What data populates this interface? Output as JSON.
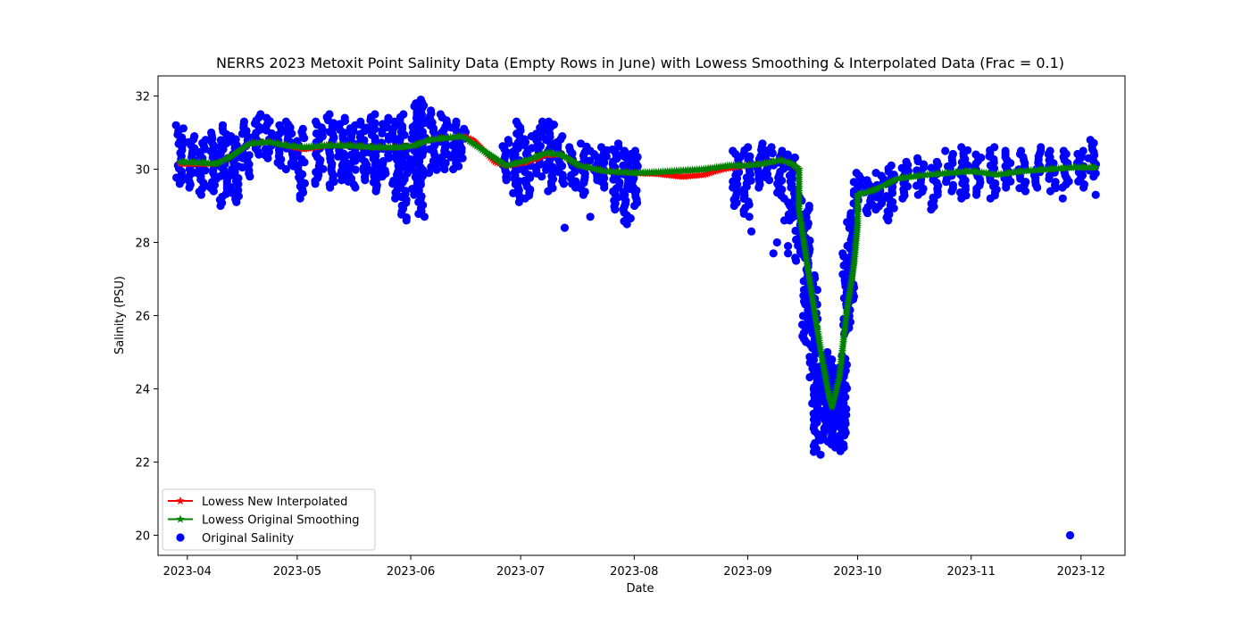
{
  "chart_data": {
    "type": "line",
    "title": "NERRS 2023 Metoxit Point Salinity Data (Empty Rows in June) with Lowess Smoothing & Interpolated Data (Frac = 0.1)",
    "xlabel": "Date",
    "ylabel": "Salinity (PSU)",
    "xlim": [
      "2023-03-24",
      "2023-12-13"
    ],
    "ylim": [
      19.45,
      32.55
    ],
    "x_ticks": [
      "2023-04-01",
      "2023-05-01",
      "2023-06-01",
      "2023-07-01",
      "2023-08-01",
      "2023-09-01",
      "2023-10-01",
      "2023-11-01",
      "2023-12-01"
    ],
    "x_tick_labels": [
      "2023-04",
      "2023-05",
      "2023-06",
      "2023-07",
      "2023-08",
      "2023-09",
      "2023-10",
      "2023-11",
      "2023-12"
    ],
    "y_ticks": [
      20,
      22,
      24,
      26,
      28,
      30,
      32
    ],
    "y_tick_labels": [
      "20",
      "22",
      "24",
      "26",
      "28",
      "30",
      "32"
    ],
    "grid": false,
    "legend_position": "lower-left",
    "series": [
      {
        "name": "Lowess New Interpolated",
        "style": "line-star",
        "color": "#ff0000",
        "points": [
          [
            "2023-03-30",
            30.15
          ],
          [
            "2023-04-05",
            30.15
          ],
          [
            "2023-04-09",
            30.15
          ],
          [
            "2023-04-13",
            30.35
          ],
          [
            "2023-04-18",
            30.7
          ],
          [
            "2023-04-23",
            30.75
          ],
          [
            "2023-04-28",
            30.65
          ],
          [
            "2023-05-03",
            30.55
          ],
          [
            "2023-05-06",
            30.6
          ],
          [
            "2023-05-09",
            30.65
          ],
          [
            "2023-05-15",
            30.65
          ],
          [
            "2023-05-22",
            30.6
          ],
          [
            "2023-05-29",
            30.6
          ],
          [
            "2023-06-02",
            30.65
          ],
          [
            "2023-06-06",
            30.8
          ],
          [
            "2023-06-10",
            30.85
          ],
          [
            "2023-06-15",
            30.9
          ],
          [
            "2023-06-18",
            30.8
          ],
          [
            "2023-06-21",
            30.5
          ],
          [
            "2023-06-24",
            30.2
          ],
          [
            "2023-06-27",
            30.1
          ],
          [
            "2023-07-03",
            30.2
          ],
          [
            "2023-07-08",
            30.4
          ],
          [
            "2023-07-12",
            30.4
          ],
          [
            "2023-07-17",
            30.1
          ],
          [
            "2023-07-24",
            29.95
          ],
          [
            "2023-08-01",
            29.9
          ],
          [
            "2023-08-07",
            29.88
          ],
          [
            "2023-08-14",
            29.8
          ],
          [
            "2023-08-20",
            29.85
          ],
          [
            "2023-08-25",
            30.0
          ],
          [
            "2023-08-31",
            30.1
          ],
          [
            "2023-09-05",
            30.15
          ],
          [
            "2023-09-10",
            30.25
          ],
          [
            "2023-09-13",
            30.15
          ],
          [
            "2023-09-15",
            30.0
          ]
        ]
      },
      {
        "name": "Lowess Original Smoothing",
        "style": "line-star",
        "color": "#008000",
        "points": [
          [
            "2023-03-30",
            30.2
          ],
          [
            "2023-04-05",
            30.18
          ],
          [
            "2023-04-09",
            30.15
          ],
          [
            "2023-04-13",
            30.35
          ],
          [
            "2023-04-18",
            30.7
          ],
          [
            "2023-04-23",
            30.75
          ],
          [
            "2023-04-28",
            30.65
          ],
          [
            "2023-05-03",
            30.6
          ],
          [
            "2023-05-09",
            30.65
          ],
          [
            "2023-05-15",
            30.65
          ],
          [
            "2023-05-22",
            30.6
          ],
          [
            "2023-05-29",
            30.6
          ],
          [
            "2023-06-02",
            30.65
          ],
          [
            "2023-06-06",
            30.8
          ],
          [
            "2023-06-10",
            30.85
          ],
          [
            "2023-06-15",
            30.9
          ],
          [
            "2023-06-27",
            30.1
          ],
          [
            "2023-07-03",
            30.25
          ],
          [
            "2023-07-08",
            30.45
          ],
          [
            "2023-07-12",
            30.4
          ],
          [
            "2023-07-17",
            30.1
          ],
          [
            "2023-07-24",
            29.95
          ],
          [
            "2023-08-01",
            29.9
          ],
          [
            "2023-08-07",
            29.92
          ],
          [
            "2023-08-20",
            30.0
          ],
          [
            "2023-08-27",
            30.1
          ],
          [
            "2023-08-31",
            30.1
          ],
          [
            "2023-09-05",
            30.15
          ],
          [
            "2023-09-10",
            30.25
          ],
          [
            "2023-09-13",
            30.15
          ],
          [
            "2023-09-15",
            30.0
          ],
          [
            "2023-09-15",
            28.9
          ],
          [
            "2023-09-18",
            26.9
          ],
          [
            "2023-09-21",
            25.0
          ],
          [
            "2023-09-23",
            23.9
          ],
          [
            "2023-09-24",
            23.5
          ],
          [
            "2023-09-26",
            24.3
          ],
          [
            "2023-09-28",
            26.1
          ],
          [
            "2023-09-30",
            27.4
          ],
          [
            "2023-10-01",
            28.5
          ],
          [
            "2023-10-01",
            29.3
          ],
          [
            "2023-10-06",
            29.45
          ],
          [
            "2023-10-12",
            29.75
          ],
          [
            "2023-10-20",
            29.85
          ],
          [
            "2023-11-01",
            29.95
          ],
          [
            "2023-11-08",
            29.85
          ],
          [
            "2023-11-15",
            29.95
          ],
          [
            "2023-11-22",
            30.0
          ],
          [
            "2023-11-29",
            30.05
          ],
          [
            "2023-12-05",
            30.05
          ]
        ]
      },
      {
        "name": "Original Salinity",
        "style": "scatter",
        "color": "#0000ff",
        "bands": [
          [
            "2023-03-30",
            29.6,
            31.2
          ],
          [
            "2023-04-02",
            29.5,
            30.9
          ],
          [
            "2023-04-05",
            29.3,
            30.8
          ],
          [
            "2023-04-08",
            29.4,
            31.0
          ],
          [
            "2023-04-11",
            29.0,
            31.2
          ],
          [
            "2023-04-14",
            29.1,
            30.9
          ],
          [
            "2023-04-17",
            29.8,
            31.3
          ],
          [
            "2023-04-20",
            30.4,
            31.5
          ],
          [
            "2023-04-23",
            30.3,
            31.4
          ],
          [
            "2023-04-26",
            30.1,
            31.2
          ],
          [
            "2023-04-29",
            30.0,
            31.3
          ],
          [
            "2023-05-02",
            29.2,
            31.1
          ],
          [
            "2023-05-07",
            29.6,
            31.3
          ],
          [
            "2023-05-10",
            29.5,
            31.5
          ],
          [
            "2023-05-13",
            29.7,
            31.4
          ],
          [
            "2023-05-16",
            29.5,
            31.2
          ],
          [
            "2023-05-19",
            29.7,
            31.3
          ],
          [
            "2023-05-22",
            29.4,
            31.5
          ],
          [
            "2023-05-25",
            29.8,
            31.4
          ],
          [
            "2023-05-28",
            29.2,
            31.3
          ],
          [
            "2023-05-30",
            28.6,
            31.5
          ],
          [
            "2023-06-02",
            29.3,
            31.8
          ],
          [
            "2023-06-04",
            28.7,
            31.9
          ],
          [
            "2023-06-07",
            29.9,
            31.6
          ],
          [
            "2023-06-10",
            30.0,
            31.5
          ],
          [
            "2023-06-13",
            30.0,
            31.3
          ],
          [
            "2023-06-15",
            30.3,
            31.1
          ],
          [
            "2023-06-27",
            29.7,
            30.8
          ],
          [
            "2023-06-30",
            29.1,
            31.3
          ],
          [
            "2023-07-03",
            29.2,
            30.9
          ],
          [
            "2023-07-06",
            29.8,
            31.3
          ],
          [
            "2023-07-09",
            29.4,
            31.3
          ],
          [
            "2023-07-12",
            29.6,
            30.9
          ],
          [
            "2023-07-15",
            29.5,
            30.6
          ],
          [
            "2023-07-18",
            29.3,
            30.7
          ],
          [
            "2023-07-21",
            29.7,
            30.5
          ],
          [
            "2023-07-24",
            29.5,
            30.6
          ],
          [
            "2023-07-27",
            28.9,
            30.7
          ],
          [
            "2023-07-30",
            28.5,
            30.5
          ],
          [
            "2023-08-01",
            29.0,
            30.5
          ],
          [
            "2023-08-29",
            29.0,
            30.5
          ],
          [
            "2023-09-01",
            28.7,
            30.6
          ],
          [
            "2023-09-04",
            29.5,
            30.7
          ],
          [
            "2023-09-07",
            29.7,
            30.6
          ],
          [
            "2023-09-10",
            29.2,
            30.5
          ],
          [
            "2023-09-13",
            28.6,
            30.4
          ],
          [
            "2023-09-15",
            27.5,
            29.3
          ],
          [
            "2023-09-17",
            25.2,
            29.0
          ],
          [
            "2023-09-19",
            23.6,
            27.1
          ],
          [
            "2023-09-20",
            22.2,
            24.6
          ],
          [
            "2023-09-22",
            22.6,
            25.0
          ],
          [
            "2023-09-24",
            22.4,
            24.8
          ],
          [
            "2023-09-26",
            22.3,
            24.5
          ],
          [
            "2023-09-27",
            22.4,
            24.9
          ],
          [
            "2023-09-28",
            25.5,
            27.7
          ],
          [
            "2023-09-29",
            26.2,
            28.8
          ],
          [
            "2023-10-01",
            28.9,
            29.9
          ],
          [
            "2023-10-04",
            28.8,
            29.7
          ],
          [
            "2023-10-07",
            28.9,
            29.9
          ],
          [
            "2023-10-10",
            28.6,
            30.1
          ],
          [
            "2023-10-14",
            29.2,
            30.2
          ],
          [
            "2023-10-18",
            29.3,
            30.3
          ],
          [
            "2023-10-22",
            28.9,
            30.2
          ],
          [
            "2023-10-26",
            29.4,
            30.5
          ],
          [
            "2023-10-30",
            29.2,
            30.6
          ],
          [
            "2023-11-03",
            29.3,
            30.4
          ],
          [
            "2023-11-07",
            29.2,
            30.6
          ],
          [
            "2023-11-11",
            29.5,
            30.5
          ],
          [
            "2023-11-15",
            29.4,
            30.5
          ],
          [
            "2023-11-19",
            29.5,
            30.6
          ],
          [
            "2023-11-23",
            29.4,
            30.5
          ],
          [
            "2023-11-27",
            29.5,
            30.5
          ],
          [
            "2023-12-01",
            29.5,
            30.5
          ],
          [
            "2023-12-04",
            29.8,
            30.8
          ]
        ],
        "outliers": [
          [
            "2023-07-13",
            28.4
          ],
          [
            "2023-07-20",
            28.7
          ],
          [
            "2023-07-15",
            29.6
          ],
          [
            "2023-09-02",
            28.3
          ],
          [
            "2023-09-08",
            27.7
          ],
          [
            "2023-09-09",
            28.0
          ],
          [
            "2023-09-11",
            28.6
          ],
          [
            "2023-09-12",
            27.9
          ],
          [
            "2023-09-12",
            27.7
          ],
          [
            "2023-11-28",
            20.0
          ],
          [
            "2023-12-05",
            29.3
          ],
          [
            "2023-11-26",
            29.2
          ]
        ]
      }
    ]
  }
}
